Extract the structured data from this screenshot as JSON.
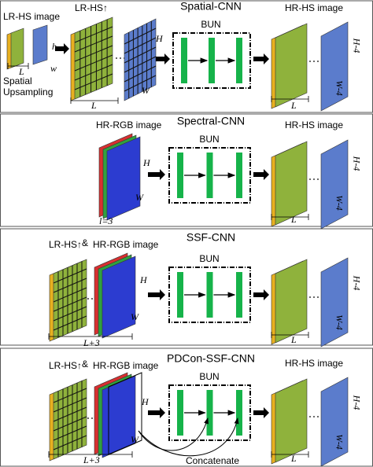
{
  "panels": [
    {
      "title": "Spatial-CNN",
      "input_label": "LR-HS image",
      "input_l": "L",
      "input_w": "w",
      "input_h": "h",
      "upsampling": [
        "Spatial",
        "Upsampling"
      ],
      "upsampled_label": "LR-HS↑",
      "upsampled_h": "H",
      "upsampled_w": "W",
      "upsampled_l": "L",
      "block": "BUN",
      "output_label": "HR-HS image",
      "output_l": "L",
      "output_h": "H-4",
      "output_w": "W-4"
    },
    {
      "title": "Spectral-CNN",
      "rgb_label": "HR-RGB image",
      "rgb_h": "H",
      "rgb_w": "W",
      "rgb_l": "l=3",
      "block": "BUN",
      "output_label": "HR-HS image",
      "output_l": "L",
      "output_h": "H-4",
      "output_w": "W-4"
    },
    {
      "title": "SSF-CNN",
      "upsampled_label": "LR-HS↑",
      "joiner": "&",
      "rgb_label": "HR-RGB image",
      "rgb_h": "H",
      "rgb_w": "W",
      "stack_l": "L+3",
      "block": "BUN",
      "output_l": "L",
      "output_h": "H-4",
      "output_w": "W-4"
    },
    {
      "title": "PDCon-SSF-CNN",
      "upsampled_label": "LR-HS↑",
      "joiner": "&",
      "rgb_label": "HR-RGB image",
      "rgb_h": "H",
      "rgb_w": "W",
      "stack_l": "L+3",
      "block": "BUN",
      "output_label": "HR-HS image",
      "output_l": "L",
      "output_h": "H-4",
      "output_w": "W-4",
      "concat": "Concatenate"
    }
  ]
}
